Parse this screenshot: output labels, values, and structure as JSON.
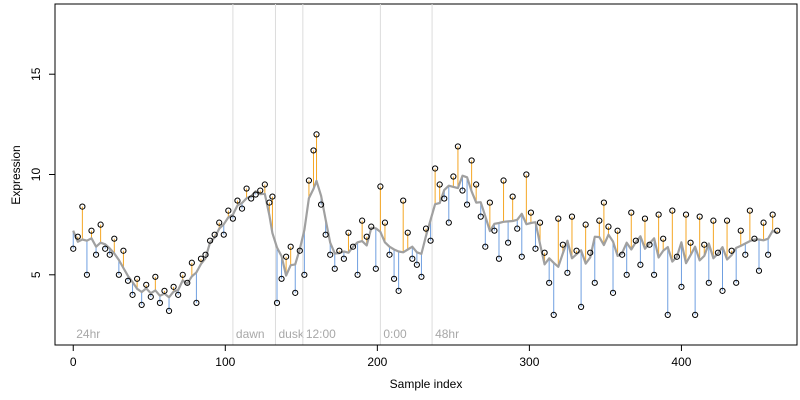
{
  "chart_data": {
    "type": "scatter",
    "title": "",
    "xlabel": "Sample index",
    "ylabel": "Expression",
    "xlim": [
      -12,
      476
    ],
    "ylim": [
      1.5,
      18.5
    ],
    "x_ticks": [
      0,
      100,
      200,
      300,
      400
    ],
    "y_ticks": [
      5,
      10,
      15
    ],
    "grid": false,
    "colors": {
      "above_fit": "#f5a623",
      "below_fit": "#6f9fe0",
      "fit_line": "#a0a0a0",
      "phase_lines": "#dcdcdc",
      "points": "#000000"
    },
    "phase_markers": [
      {
        "label": "24hr",
        "x": 0
      },
      {
        "label": "dawn",
        "x": 105
      },
      {
        "label": "dusk",
        "x": 133
      },
      {
        "label": "12:00",
        "x": 151
      },
      {
        "label": "0:00",
        "x": 202
      },
      {
        "label": "48hr",
        "x": 236
      }
    ],
    "series": [
      {
        "points": [
          [
            0,
            6.3
          ],
          [
            3,
            6.9
          ],
          [
            6,
            8.4
          ],
          [
            9,
            5.0
          ],
          [
            12,
            7.2
          ],
          [
            15,
            6.0
          ],
          [
            18,
            7.5
          ],
          [
            21,
            6.3
          ],
          [
            24,
            6.0
          ],
          [
            27,
            6.8
          ],
          [
            30,
            5.0
          ],
          [
            33,
            6.2
          ],
          [
            36,
            4.7
          ],
          [
            39,
            4.0
          ],
          [
            42,
            4.8
          ],
          [
            45,
            3.5
          ],
          [
            48,
            4.5
          ],
          [
            51,
            3.9
          ],
          [
            54,
            4.9
          ],
          [
            57,
            3.6
          ],
          [
            60,
            4.2
          ],
          [
            63,
            3.2
          ],
          [
            66,
            4.4
          ],
          [
            69,
            4.0
          ],
          [
            72,
            5.0
          ],
          [
            75,
            4.6
          ],
          [
            78,
            5.6
          ],
          [
            81,
            3.6
          ],
          [
            84,
            5.8
          ],
          [
            87,
            6.0
          ],
          [
            90,
            6.7
          ],
          [
            93,
            7.0
          ],
          [
            96,
            7.6
          ],
          [
            99,
            7.0
          ],
          [
            102,
            8.2
          ],
          [
            105,
            7.8
          ],
          [
            108,
            8.7
          ],
          [
            111,
            8.3
          ],
          [
            114,
            9.3
          ],
          [
            117,
            8.8
          ],
          [
            120,
            9.0
          ],
          [
            123,
            9.2
          ],
          [
            126,
            9.5
          ],
          [
            129,
            8.6
          ],
          [
            131,
            8.9
          ],
          [
            134,
            3.6
          ],
          [
            137,
            4.8
          ],
          [
            140,
            5.9
          ],
          [
            143,
            6.4
          ],
          [
            146,
            4.1
          ],
          [
            149,
            6.2
          ],
          [
            152,
            5.0
          ],
          [
            155,
            9.7
          ],
          [
            158,
            11.2
          ],
          [
            160,
            12.0
          ],
          [
            163,
            8.5
          ],
          [
            166,
            7.0
          ],
          [
            169,
            6.0
          ],
          [
            172,
            5.3
          ],
          [
            175,
            6.2
          ],
          [
            178,
            5.8
          ],
          [
            181,
            7.1
          ],
          [
            184,
            6.4
          ],
          [
            187,
            5.0
          ],
          [
            190,
            7.7
          ],
          [
            193,
            6.9
          ],
          [
            196,
            7.4
          ],
          [
            199,
            5.3
          ],
          [
            202,
            9.4
          ],
          [
            205,
            7.6
          ],
          [
            208,
            6.0
          ],
          [
            211,
            4.8
          ],
          [
            214,
            4.2
          ],
          [
            217,
            8.7
          ],
          [
            220,
            7.1
          ],
          [
            223,
            5.8
          ],
          [
            226,
            5.5
          ],
          [
            229,
            4.9
          ],
          [
            232,
            7.3
          ],
          [
            235,
            6.7
          ],
          [
            238,
            10.3
          ],
          [
            241,
            9.5
          ],
          [
            244,
            8.8
          ],
          [
            247,
            7.6
          ],
          [
            250,
            9.9
          ],
          [
            253,
            11.4
          ],
          [
            256,
            9.2
          ],
          [
            259,
            8.5
          ],
          [
            262,
            10.7
          ],
          [
            265,
            9.5
          ],
          [
            268,
            7.9
          ],
          [
            271,
            6.4
          ],
          [
            274,
            8.6
          ],
          [
            277,
            7.2
          ],
          [
            280,
            5.8
          ],
          [
            283,
            9.7
          ],
          [
            286,
            6.6
          ],
          [
            289,
            8.9
          ],
          [
            292,
            7.3
          ],
          [
            295,
            5.9
          ],
          [
            298,
            10.0
          ],
          [
            301,
            8.1
          ],
          [
            304,
            6.3
          ],
          [
            307,
            7.6
          ],
          [
            310,
            6.1
          ],
          [
            313,
            4.6
          ],
          [
            316,
            3.0
          ],
          [
            319,
            7.8
          ],
          [
            322,
            6.5
          ],
          [
            325,
            5.1
          ],
          [
            328,
            7.9
          ],
          [
            331,
            6.2
          ],
          [
            334,
            3.4
          ],
          [
            337,
            7.5
          ],
          [
            340,
            6.1
          ],
          [
            343,
            4.6
          ],
          [
            346,
            7.7
          ],
          [
            349,
            8.6
          ],
          [
            352,
            7.4
          ],
          [
            355,
            4.1
          ],
          [
            358,
            7.2
          ],
          [
            361,
            6.0
          ],
          [
            364,
            5.0
          ],
          [
            367,
            8.1
          ],
          [
            370,
            6.7
          ],
          [
            373,
            5.5
          ],
          [
            376,
            7.8
          ],
          [
            379,
            6.5
          ],
          [
            382,
            5.0
          ],
          [
            385,
            8.0
          ],
          [
            388,
            6.8
          ],
          [
            391,
            3.0
          ],
          [
            394,
            8.2
          ],
          [
            397,
            5.9
          ],
          [
            400,
            4.4
          ],
          [
            403,
            8.0
          ],
          [
            406,
            6.6
          ],
          [
            409,
            3.0
          ],
          [
            412,
            7.9
          ],
          [
            415,
            6.5
          ],
          [
            418,
            4.6
          ],
          [
            421,
            7.7
          ],
          [
            424,
            6.1
          ],
          [
            427,
            4.2
          ],
          [
            430,
            7.7
          ],
          [
            433,
            6.2
          ],
          [
            436,
            4.6
          ],
          [
            439,
            7.2
          ],
          [
            442,
            6.0
          ],
          [
            445,
            8.2
          ],
          [
            448,
            6.8
          ],
          [
            451,
            5.2
          ],
          [
            454,
            7.6
          ],
          [
            457,
            6.0
          ],
          [
            460,
            8.0
          ],
          [
            463,
            7.2
          ]
        ]
      }
    ]
  }
}
